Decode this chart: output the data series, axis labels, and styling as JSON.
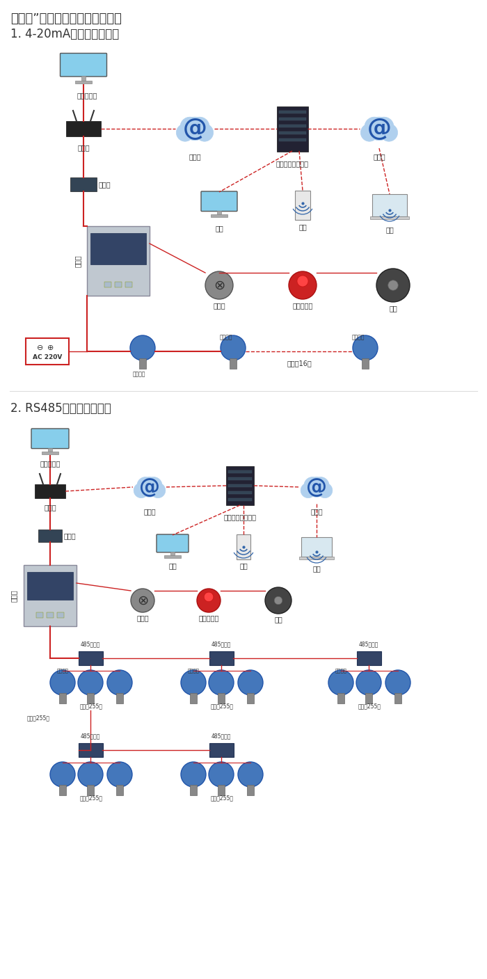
{
  "title_line1": "机气猫”系列带显示固定式检测仪",
  "section1_title": "1. 4-20mA信号连接系统图",
  "section2_title": "2. RS485信号连接系统图",
  "bg_color": "#ffffff",
  "text_color": "#333333",
  "line_color_red": "#cc2222",
  "fig_width": 7.0,
  "fig_height": 14.07,
  "labels_section1": {
    "pc": "单机版电脑",
    "router": "路由器",
    "internet1": "互联网",
    "server": "安帕尔网络服务器",
    "internet2": "互联网",
    "converter": "转换器",
    "comms": "通讯线",
    "desktop": "电脑",
    "phone": "手机",
    "terminal": "终端",
    "valve": "电磁阀",
    "alarm": "声光报警器",
    "fan": "风机",
    "power": "AC 220V",
    "signal_out1": "信号输出",
    "signal_in": "信号输出",
    "signal_out2": "信号输出",
    "connect16": "可连接16个"
  },
  "labels_section2": {
    "pc": "单机版电脑",
    "router": "路由器",
    "internet1": "互联网",
    "server": "安帕尔网络服务器",
    "internet2": "互联网",
    "converter": "转换器",
    "comms": "通讯线",
    "desktop": "电脑",
    "phone": "手机",
    "terminal": "终端",
    "valve": "电磁阀",
    "alarm": "声光报警器",
    "fan": "风机",
    "repeater485_1": "485中继器",
    "repeater485_2": "485中继器",
    "repeater485_3": "485中继器",
    "repeater485_4": "485中继器",
    "repeater485_5": "485中继器",
    "connect255": "可连接255台",
    "connect255b": "可连接255台",
    "connect255c": "可连接255台",
    "signal": "信号输出"
  }
}
